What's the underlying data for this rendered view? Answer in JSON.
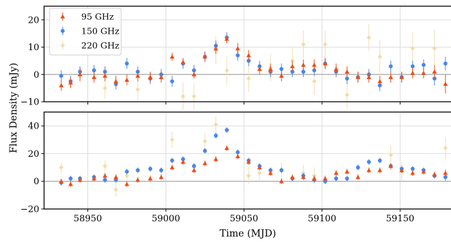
{
  "chart_data": {
    "type": "scatter",
    "xlabel": "Time (MJD)",
    "ylabel": "Flux Density (mJy)",
    "x_ticks": [
      "58950",
      "59000",
      "59050",
      "59100",
      "59150"
    ],
    "x_tick_values": [
      58950,
      59000,
      59050,
      59100,
      59150
    ],
    "xlim": [
      58922,
      59183
    ],
    "grid": true,
    "legend_position": "top-left",
    "panels": [
      {
        "name": "top",
        "ylim": [
          -10,
          25
        ],
        "y_ticks": [
          "20",
          "10",
          "0",
          "−10"
        ],
        "y_tick_values": [
          20,
          10,
          0,
          -10
        ]
      },
      {
        "name": "bottom",
        "ylim": [
          -20,
          50
        ],
        "y_ticks": [
          "40",
          "20",
          "0",
          "−20"
        ],
        "y_tick_values": [
          40,
          20,
          0,
          -20
        ]
      }
    ],
    "series": [
      {
        "name": "95 GHz",
        "color": "#e8501a",
        "marker": "triangle",
        "top": [
          [
            58933,
            -4,
            2
          ],
          [
            58939,
            -3,
            2
          ],
          [
            58945,
            0,
            2.5
          ],
          [
            58954,
            -1,
            2
          ],
          [
            58961,
            -0.5,
            2
          ],
          [
            58968,
            -2.5,
            2
          ],
          [
            58975,
            -2,
            2
          ],
          [
            58982,
            -0.5,
            2
          ],
          [
            58990,
            -1,
            2
          ],
          [
            58997,
            -1,
            2
          ],
          [
            59004,
            6.5,
            1.5
          ],
          [
            59011,
            4.5,
            1.5
          ],
          [
            59018,
            0,
            1.5
          ],
          [
            59025,
            6.5,
            1.5
          ],
          [
            59032,
            9.5,
            2
          ],
          [
            59039,
            13,
            1.5
          ],
          [
            59046,
            9.5,
            2
          ],
          [
            59053,
            7,
            2
          ],
          [
            59060,
            2,
            2
          ],
          [
            59067,
            2,
            2
          ],
          [
            59074,
            -0.5,
            2
          ],
          [
            59081,
            3,
            2
          ],
          [
            59088,
            3.5,
            2
          ],
          [
            59095,
            3.5,
            2
          ],
          [
            59102,
            4,
            2
          ],
          [
            59109,
            2,
            2
          ],
          [
            59116,
            1,
            2
          ],
          [
            59123,
            -1,
            2
          ],
          [
            59130,
            -1,
            2
          ],
          [
            59137,
            -2.5,
            2
          ],
          [
            59144,
            -1,
            2
          ],
          [
            59151,
            -1,
            2
          ],
          [
            59158,
            0.5,
            2
          ],
          [
            59165,
            0.5,
            2
          ],
          [
            59172,
            1,
            2.5
          ],
          [
            59179,
            -3.5,
            3.5
          ]
        ],
        "bottom": [
          [
            58933,
            0,
            2
          ],
          [
            58939,
            -2,
            2
          ],
          [
            58945,
            1,
            2
          ],
          [
            58954,
            2,
            2
          ],
          [
            58961,
            4,
            2
          ],
          [
            58968,
            3,
            2
          ],
          [
            58975,
            -2,
            2
          ],
          [
            58982,
            1,
            2
          ],
          [
            58990,
            2,
            2
          ],
          [
            58997,
            3,
            2
          ],
          [
            59004,
            10,
            2
          ],
          [
            59011,
            14,
            2
          ],
          [
            59018,
            8,
            2
          ],
          [
            59025,
            13,
            2
          ],
          [
            59032,
            16,
            2
          ],
          [
            59039,
            24,
            2
          ],
          [
            59046,
            18,
            2
          ],
          [
            59053,
            14,
            2
          ],
          [
            59060,
            10,
            2
          ],
          [
            59067,
            6,
            2
          ],
          [
            59074,
            0,
            2
          ],
          [
            59081,
            3,
            2
          ],
          [
            59088,
            3,
            2
          ],
          [
            59095,
            2,
            2
          ],
          [
            59102,
            2,
            2
          ],
          [
            59109,
            6,
            2
          ],
          [
            59116,
            7,
            2
          ],
          [
            59123,
            3,
            2
          ],
          [
            59130,
            8,
            2
          ],
          [
            59137,
            8,
            2
          ],
          [
            59144,
            11,
            2
          ],
          [
            59151,
            8,
            2
          ],
          [
            59158,
            6,
            2
          ],
          [
            59165,
            7,
            2
          ],
          [
            59172,
            5,
            2
          ],
          [
            59179,
            6,
            2.5
          ]
        ]
      },
      {
        "name": "150 GHz",
        "color": "#4a86e8",
        "marker": "circle",
        "top": [
          [
            58933,
            -0.5,
            2
          ],
          [
            58939,
            -2.5,
            2
          ],
          [
            58945,
            1,
            2
          ],
          [
            58954,
            1.5,
            2
          ],
          [
            58961,
            1,
            2
          ],
          [
            58968,
            -3.5,
            2
          ],
          [
            58975,
            4,
            2
          ],
          [
            58982,
            1,
            2
          ],
          [
            58990,
            -1.5,
            2
          ],
          [
            58997,
            0,
            2
          ],
          [
            59004,
            -2.5,
            2
          ],
          [
            59011,
            4,
            2
          ],
          [
            59018,
            1.5,
            2
          ],
          [
            59025,
            6.5,
            2
          ],
          [
            59032,
            10.5,
            2
          ],
          [
            59039,
            13.5,
            2
          ],
          [
            59046,
            7,
            2
          ],
          [
            59053,
            5,
            2
          ],
          [
            59060,
            3,
            2
          ],
          [
            59067,
            1,
            2
          ],
          [
            59074,
            2,
            2
          ],
          [
            59081,
            1,
            2
          ],
          [
            59088,
            1,
            2
          ],
          [
            59095,
            1.5,
            2
          ],
          [
            59102,
            4,
            2
          ],
          [
            59109,
            1,
            2
          ],
          [
            59116,
            -1.5,
            2
          ],
          [
            59123,
            -1,
            2
          ],
          [
            59130,
            0,
            2
          ],
          [
            59137,
            -4,
            2
          ],
          [
            59144,
            3,
            2
          ],
          [
            59151,
            -1,
            2
          ],
          [
            59158,
            3,
            2
          ],
          [
            59165,
            3.5,
            2
          ],
          [
            59172,
            -1.5,
            2.5
          ],
          [
            59179,
            4,
            2.5
          ]
        ],
        "bottom": [
          [
            58933,
            -1,
            2
          ],
          [
            58939,
            2,
            2
          ],
          [
            58945,
            2,
            2
          ],
          [
            58954,
            3,
            2
          ],
          [
            58961,
            1,
            2
          ],
          [
            58968,
            1,
            2
          ],
          [
            58975,
            7,
            2
          ],
          [
            58982,
            8,
            2
          ],
          [
            58990,
            9,
            2
          ],
          [
            58997,
            8,
            2
          ],
          [
            59004,
            15,
            2
          ],
          [
            59011,
            16,
            2
          ],
          [
            59018,
            11,
            2
          ],
          [
            59025,
            22,
            2
          ],
          [
            59032,
            33,
            2
          ],
          [
            59039,
            37,
            2
          ],
          [
            59046,
            21,
            2
          ],
          [
            59053,
            15,
            2
          ],
          [
            59060,
            11,
            2
          ],
          [
            59067,
            8,
            2
          ],
          [
            59074,
            8,
            2
          ],
          [
            59081,
            2,
            2
          ],
          [
            59088,
            4,
            2
          ],
          [
            59095,
            1,
            2
          ],
          [
            59102,
            0,
            2
          ],
          [
            59109,
            2,
            2
          ],
          [
            59116,
            2,
            2
          ],
          [
            59123,
            10,
            2
          ],
          [
            59130,
            14,
            2
          ],
          [
            59137,
            15,
            2
          ],
          [
            59144,
            11,
            2
          ],
          [
            59151,
            9,
            2
          ],
          [
            59158,
            9,
            2
          ],
          [
            59165,
            8,
            2
          ],
          [
            59172,
            4,
            2
          ],
          [
            59179,
            3,
            2.5
          ]
        ]
      },
      {
        "name": "220 GHz",
        "color": "#f0dcae",
        "marker": "diamond",
        "top": [
          [
            58961,
            -5,
            4
          ],
          [
            58982,
            -5.5,
            4
          ],
          [
            59011,
            -8,
            5
          ],
          [
            59018,
            -8,
            5
          ],
          [
            59032,
            9,
            5
          ],
          [
            59039,
            1.5,
            5
          ],
          [
            59053,
            -1.5,
            5
          ],
          [
            59067,
            2.5,
            5
          ],
          [
            59081,
            5,
            5
          ],
          [
            59088,
            11,
            5
          ],
          [
            59095,
            -2.5,
            5
          ],
          [
            59102,
            11,
            5
          ],
          [
            59116,
            -7.5,
            5
          ],
          [
            59130,
            13.5,
            5
          ],
          [
            59137,
            6.5,
            6
          ],
          [
            59158,
            9.5,
            6
          ],
          [
            59172,
            9.5,
            7
          ]
        ],
        "bottom": [
          [
            58933,
            10,
            4
          ],
          [
            58961,
            11,
            4
          ],
          [
            58968,
            -6,
            5
          ],
          [
            58975,
            4,
            5
          ],
          [
            59004,
            30,
            6
          ],
          [
            59025,
            29,
            6
          ],
          [
            59032,
            41,
            6
          ],
          [
            59053,
            4,
            6
          ],
          [
            59060,
            6,
            6
          ],
          [
            59074,
            8,
            6
          ],
          [
            59088,
            6,
            6
          ],
          [
            59095,
            4,
            6
          ],
          [
            59144,
            19,
            7
          ],
          [
            59151,
            7,
            7
          ],
          [
            59179,
            24,
            8
          ]
        ]
      }
    ]
  }
}
